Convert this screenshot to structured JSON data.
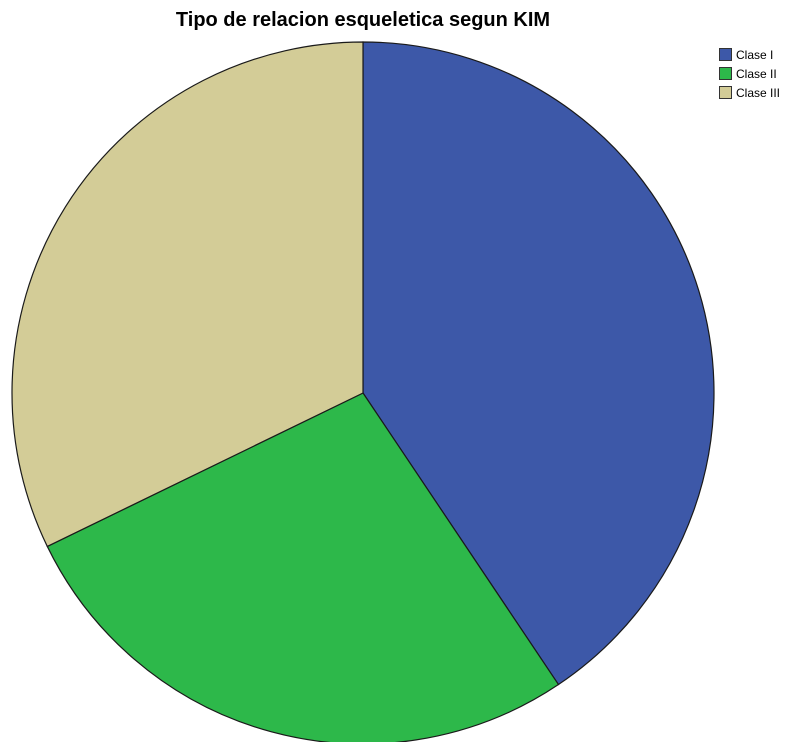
{
  "chart_data": {
    "type": "pie",
    "title": "Tipo de relacion esqueletica segun KIM",
    "categories": [
      "Clase I",
      "Clase II",
      "Clase III"
    ],
    "values": [
      40.6,
      27.2,
      32.2
    ],
    "colors": [
      "#3d58a8",
      "#2db84a",
      "#d3cc97"
    ],
    "legend_position": "top-right",
    "start_angle_deg": 0,
    "direction": "clockwise"
  }
}
